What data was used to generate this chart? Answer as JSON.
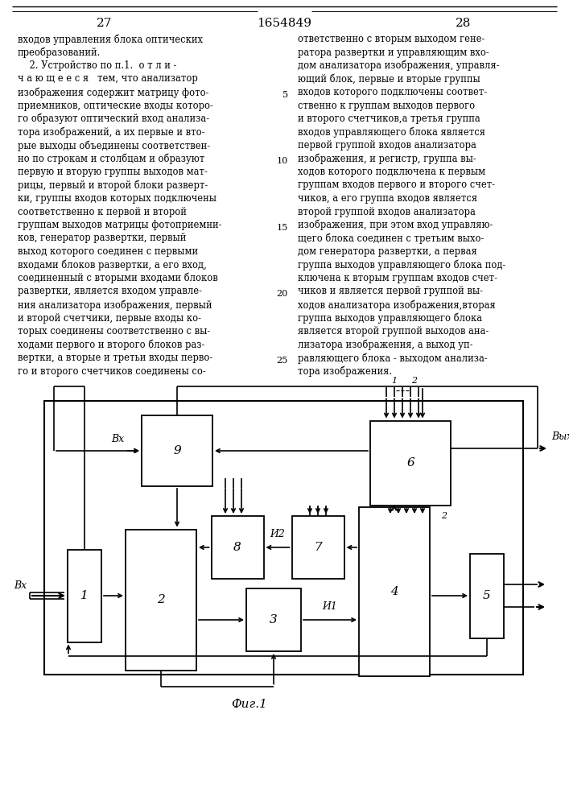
{
  "page_number_left": "27",
  "patent_number": "1654849",
  "page_number_right": "28",
  "left_column_text": [
    "входов управления блока оптических",
    "преобразований.",
    "    2. Устройство по п.1.  о т л и -",
    "ч а ю щ е е с я   тем, что анализатор",
    "изображения содержит матрицу фото-",
    "приемников, оптические входы которо-",
    "го образуют оптический вход анализа-",
    "тора изображений, а их первые и вто-",
    "рые выходы объединены соответствен-",
    "но по строкам и столбцам и образуют",
    "первую и вторую группы выходов мат-",
    "рицы, первый и второй блоки разверт-",
    "ки, группы входов которых подключены",
    "соответственно к первой и второй",
    "группам выходов матрицы фотоприемни-",
    "ков, генератор развертки, первый",
    "выход которого соединен с первыми",
    "входами блоков развертки, а его вход,",
    "соединенный с вторыми входами блоков",
    "развертки, является входом управле-",
    "ния анализатора изображения, первый",
    "и второй счетчики, первые входы ко-",
    "торых соединены соответственно с вы-",
    "ходами первого и второго блоков раз-",
    "вертки, а вторые и третьи входы перво-",
    "го и второго счетчиков соединены со-"
  ],
  "right_column_text": [
    "ответственно с вторым выходом гене-",
    "ратора развертки и управляющим вхо-",
    "дом анализатора изображения, управля-",
    "ющий блок, первые и вторые группы",
    "входов которого подключены соответ-",
    "ственно к группам выходов первого",
    "и второго счетчиков,а третья группа",
    "входов управляющего блока является",
    "первой группой входов анализатора",
    "изображения, и регистр, группа вы-",
    "ходов которого подключена к первым",
    "группам входов первого и второго счет-",
    "чиков, а его группа входов является",
    "второй группой входов анализатора",
    "изображения, при этом вход управляю-",
    "щего блока соединен с третьим выхо-",
    "дом генератора развертки, а первая",
    "группа выходов управляющего блока под-",
    "ключена к вторым группам входов счет-",
    "чиков и является первой группой вы-",
    "ходов анализатора изображения,вторая",
    "группа выходов управляющего блока",
    "является второй группой выходов ана-",
    "лизатора изображения, а выход уп-",
    "равляющего блока - выходом анализа-",
    "тора изображения."
  ],
  "fig_caption": "Фиг.1",
  "bg_color": "#f5f5f0"
}
